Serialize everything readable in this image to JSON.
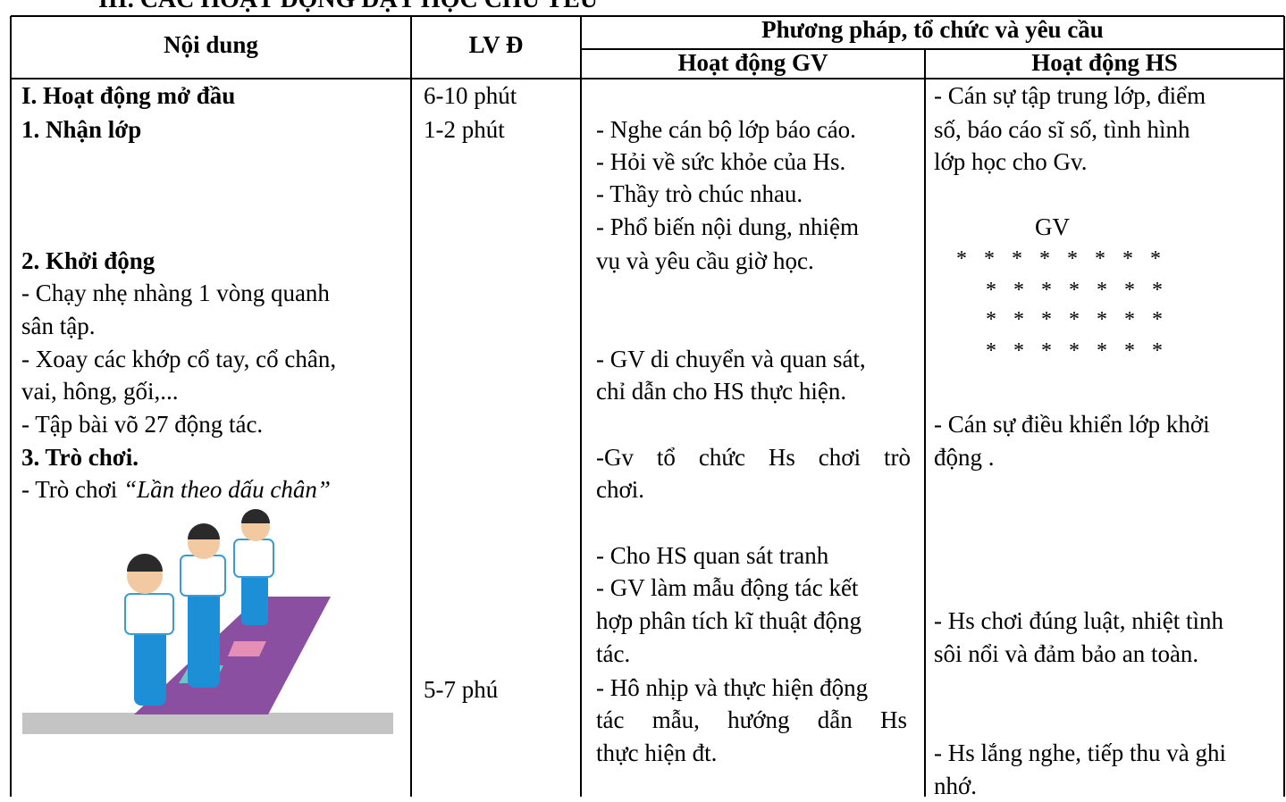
{
  "header": {
    "title": "III. CÁC HOẠT ĐỘNG DẠY HỌC CHỦ YẾU"
  },
  "table": {
    "headers": {
      "content": "Nội dung",
      "dose": "LV Đ",
      "method": "Phương pháp, tổ chức và yêu cầu",
      "teacher": "Hoạt động GV",
      "student": "Hoạt động HS"
    },
    "content": [
      "I. Hoạt động mở đầu",
      "1. Nhận lớp",
      "2. Khởi động",
      "- Chạy nhẹ nhàng 1 vòng quanh",
      "sân tập.",
      "- Xoay các khớp cổ tay, cổ chân,",
      "vai, hông, gối,...",
      "- Tập bài võ 27 động tác.",
      "3. Trò chơi.",
      "- Trò chơi ",
      "“Lần theo dấu chân”"
    ],
    "dose": [
      "6-10 phút",
      "1-2 phút",
      "5-7 phú"
    ],
    "teacher": [
      "- Nghe cán bộ lớp báo cáo.",
      "- Hỏi về sức khỏe của Hs.",
      "- Thầy trò chúc nhau.",
      "- Phổ biến nội dung, nhiệm",
      "vụ và yêu cầu giờ học.",
      "- GV di chuyển và quan sát,",
      "chỉ dẫn cho HS thực hiện.",
      "-Gv tổ chức Hs chơi trò",
      "chơi.",
      "- Cho HS quan sát tranh",
      "- GV làm mẫu động tác kết",
      "hợp phân tích kĩ thuật động",
      "tác.",
      "- Hô nhịp và thực hiện động",
      "tác mẫu, hướng dẫn Hs",
      "thực hiện đt."
    ],
    "student": [
      "- Cán sự tập trung lớp, điểm",
      "số, báo cáo sĩ số, tình hình",
      "lớp học cho Gv.",
      "GV",
      "* * * * * * * *",
      "* * * * * * *",
      "* * * * * * *",
      "* * * * * * *",
      "- Cán sự điều khiển lớp khởi",
      "động .",
      "- Hs chơi đúng luật, nhiệt tình",
      "sôi nổi và đảm bảo an toàn.",
      "- Hs lắng nghe, tiếp thu và ghi",
      "nhớ."
    ]
  }
}
